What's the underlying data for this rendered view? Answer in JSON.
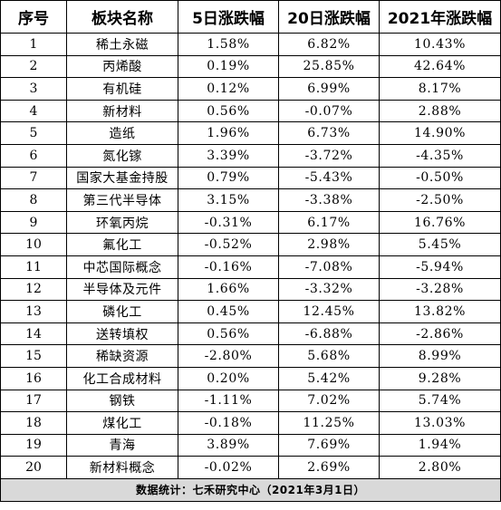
{
  "headers": [
    "序号",
    "板块名称",
    "5日涨跌幅",
    "20日涨跌幅",
    "2021年涨跌幅"
  ],
  "rows": [
    [
      "1",
      "稀土永磁",
      "1.58%",
      "6.82%",
      "10.43%"
    ],
    [
      "2",
      "丙烯酸",
      "0.19%",
      "25.85%",
      "42.64%"
    ],
    [
      "3",
      "有机硅",
      "0.12%",
      "6.99%",
      "8.17%"
    ],
    [
      "4",
      "新材料",
      "0.56%",
      "-0.07%",
      "2.88%"
    ],
    [
      "5",
      "造纸",
      "1.96%",
      "6.73%",
      "14.90%"
    ],
    [
      "6",
      "氮化镓",
      "3.39%",
      "-3.72%",
      "-4.35%"
    ],
    [
      "7",
      "国家大基金持股",
      "0.79%",
      "-5.43%",
      "-0.50%"
    ],
    [
      "8",
      "第三代半导体",
      "3.15%",
      "-3.38%",
      "-2.50%"
    ],
    [
      "9",
      "环氧丙烷",
      "-0.31%",
      "6.17%",
      "16.76%"
    ],
    [
      "10",
      "氟化工",
      "-0.52%",
      "2.98%",
      "5.45%"
    ],
    [
      "11",
      "中芯国际概念",
      "-0.16%",
      "-7.08%",
      "-5.94%"
    ],
    [
      "12",
      "半导体及元件",
      "1.66%",
      "-3.32%",
      "-3.28%"
    ],
    [
      "13",
      "磷化工",
      "0.45%",
      "12.45%",
      "13.82%"
    ],
    [
      "14",
      "送转填权",
      "0.56%",
      "-6.88%",
      "-2.86%"
    ],
    [
      "15",
      "稀缺资源",
      "-2.80%",
      "5.68%",
      "8.99%"
    ],
    [
      "16",
      "化工合成材料",
      "0.20%",
      "5.42%",
      "9.28%"
    ],
    [
      "17",
      "钢铁",
      "-1.11%",
      "7.02%",
      "5.74%"
    ],
    [
      "18",
      "煤化工",
      "-0.18%",
      "11.25%",
      "13.03%"
    ],
    [
      "19",
      "青海",
      "3.89%",
      "7.69%",
      "1.94%"
    ],
    [
      "20",
      "新材料概念",
      "-0.02%",
      "2.69%",
      "2.80%"
    ]
  ],
  "footer": "数据统计：七禾研究中心（2021年3月1日）",
  "colors": {
    "footer_bg": "#d9d9d9",
    "border": "#000000"
  }
}
